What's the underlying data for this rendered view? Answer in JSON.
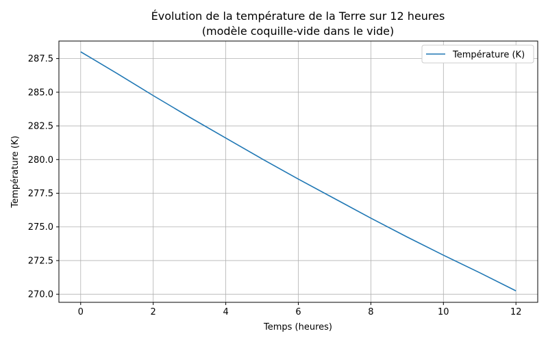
{
  "chart_data": {
    "type": "line",
    "title": "Évolution de la température de la Terre sur 12 heures",
    "subtitle": "(modèle coquille-vide dans le vide)",
    "xlabel": "Temps (heures)",
    "ylabel": "Température (K)",
    "xlim": [
      -0.6,
      12.6
    ],
    "ylim": [
      269.4,
      288.8
    ],
    "xticks": [
      0,
      2,
      4,
      6,
      8,
      10,
      12
    ],
    "xtick_labels": [
      "0",
      "2",
      "4",
      "6",
      "8",
      "10",
      "12"
    ],
    "yticks": [
      270.0,
      272.5,
      275.0,
      277.5,
      280.0,
      282.5,
      285.0,
      287.5
    ],
    "ytick_labels": [
      "270.0",
      "272.5",
      "275.0",
      "277.5",
      "280.0",
      "282.5",
      "285.0",
      "287.5"
    ],
    "grid": true,
    "legend_position": "top-right",
    "series": [
      {
        "name": "Température (K)",
        "color": "#1f77b4",
        "x": [
          0,
          1,
          2,
          3,
          4,
          5,
          6,
          7,
          8,
          9,
          10,
          11,
          12
        ],
        "y": [
          288.0,
          286.4,
          284.75,
          283.15,
          281.6,
          280.05,
          278.55,
          277.1,
          275.65,
          274.25,
          272.9,
          271.6,
          270.25
        ]
      }
    ]
  }
}
